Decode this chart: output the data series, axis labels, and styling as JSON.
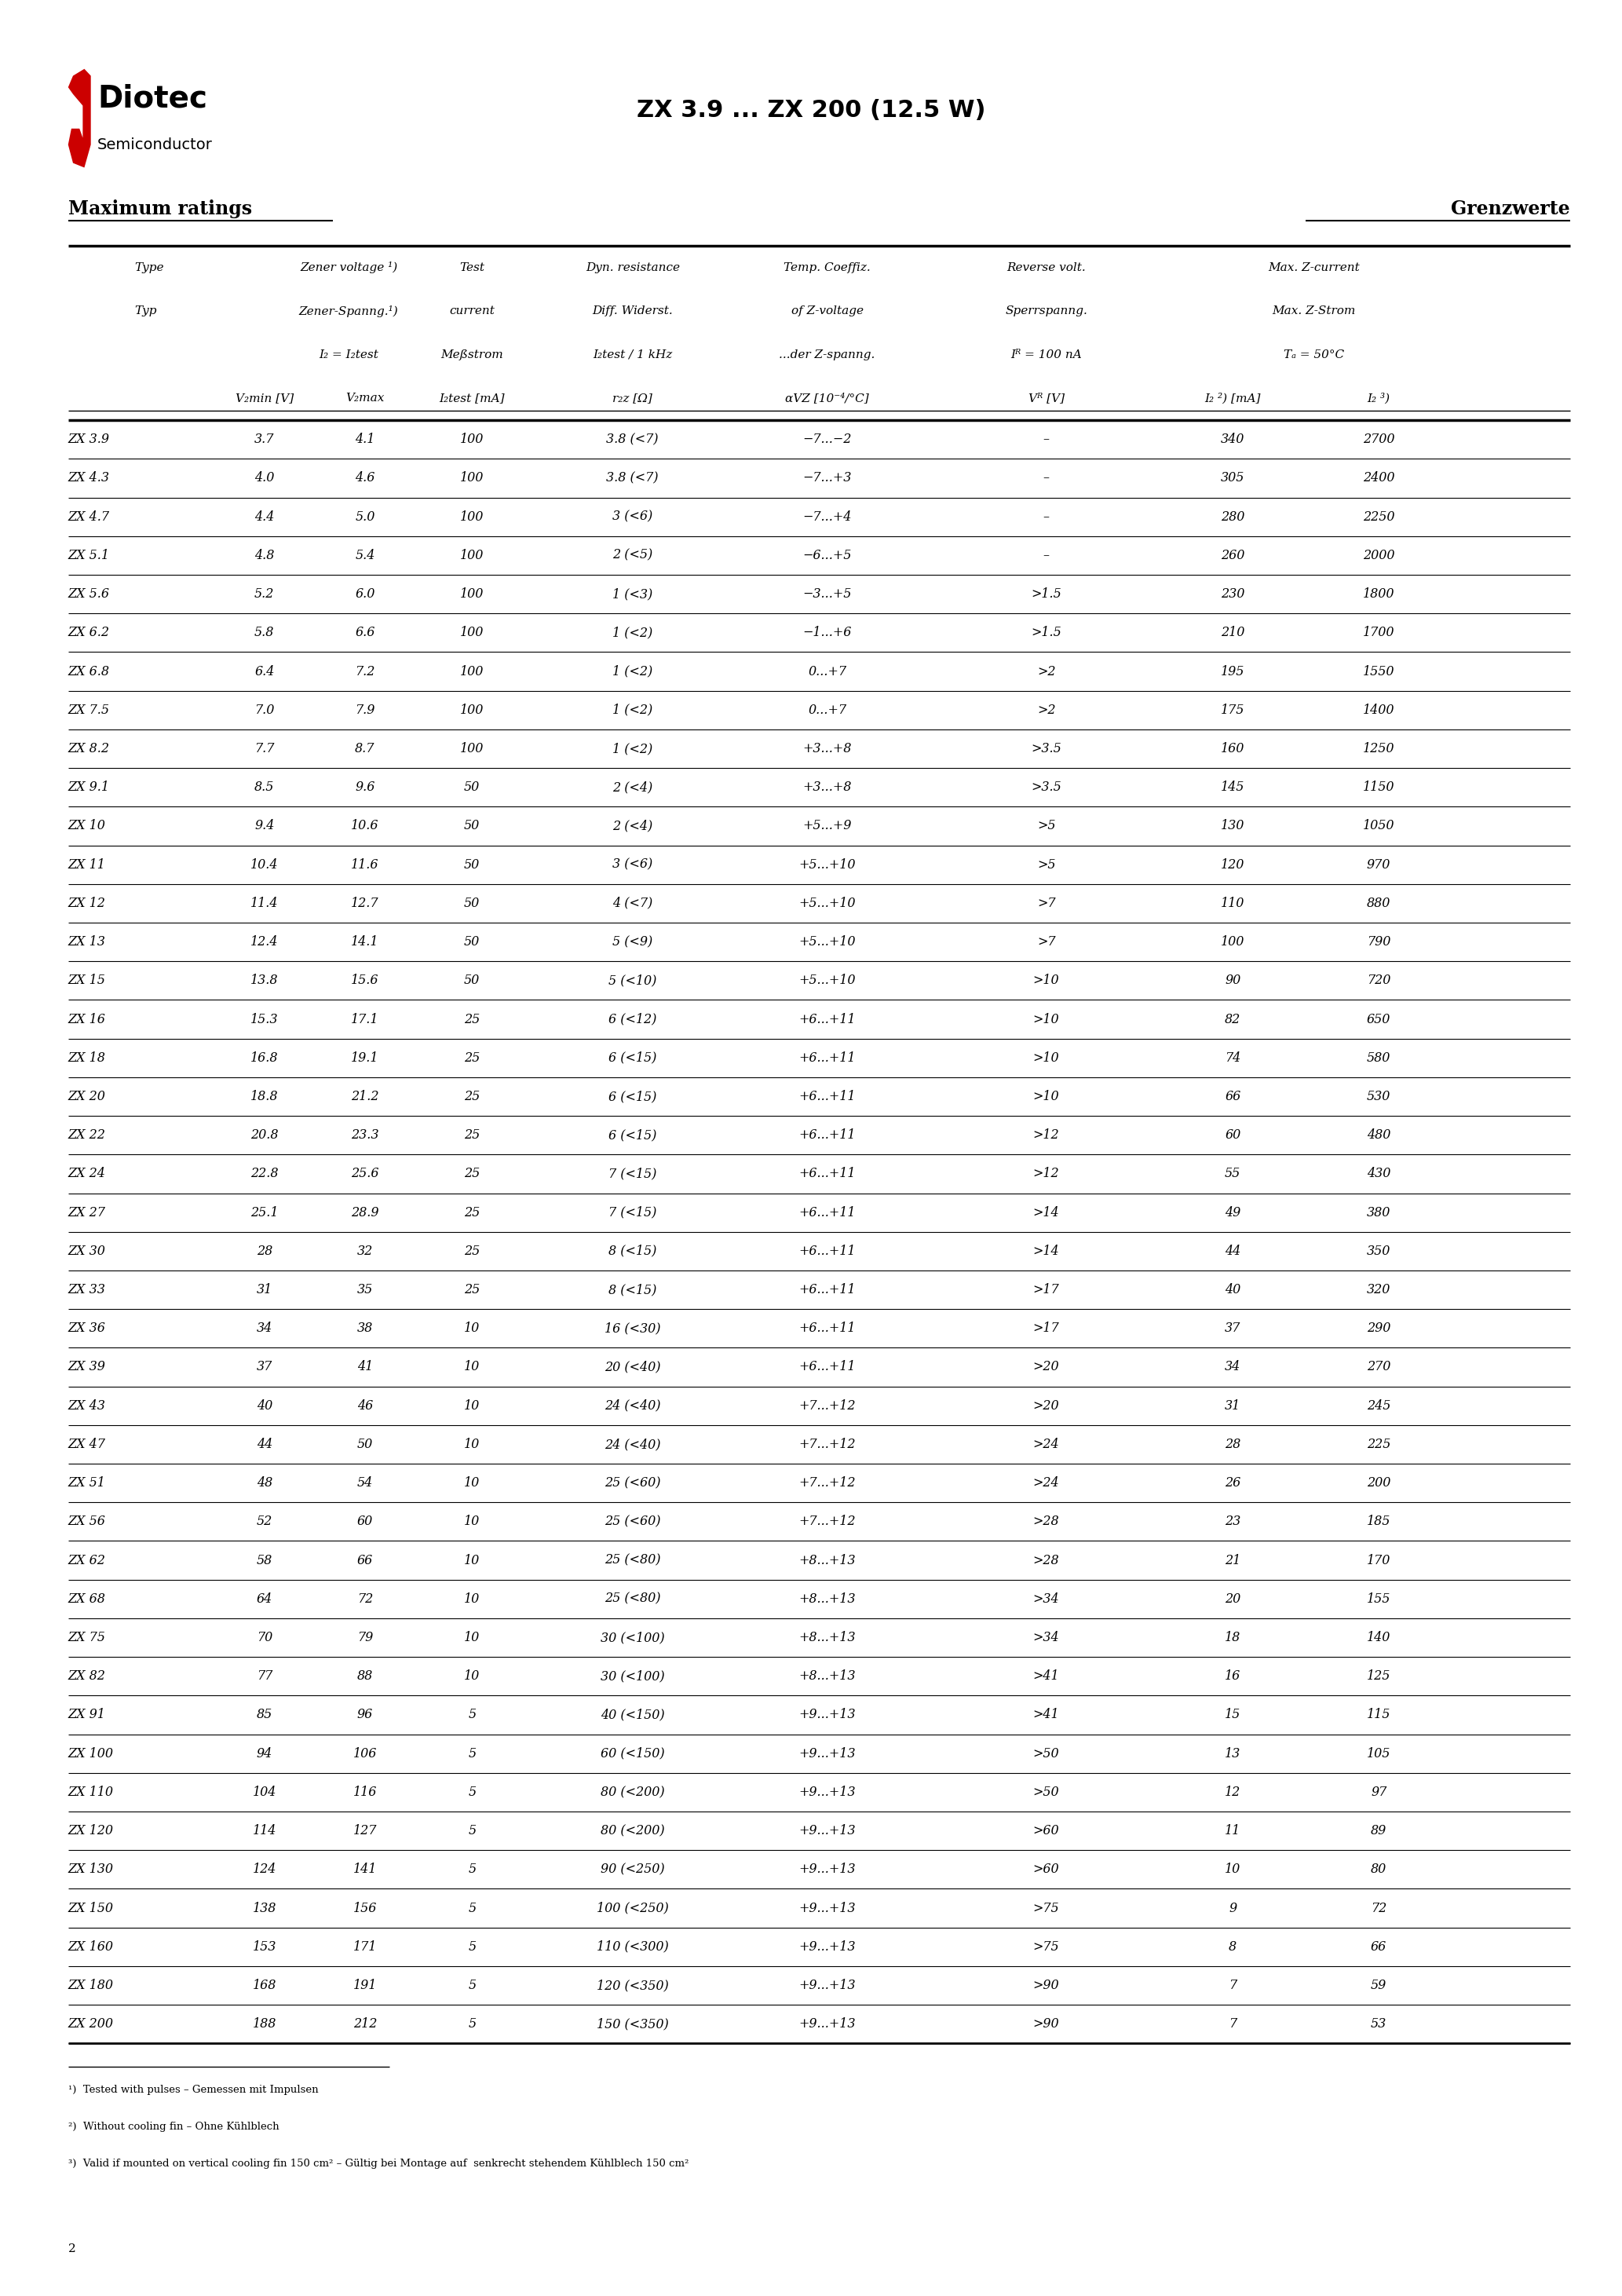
{
  "title": "ZX 3.9 ... ZX 200 (12.5 W)",
  "heading_left": "Maximum ratings",
  "heading_right": "Grenzwerte",
  "rows": [
    [
      "ZX 3.9",
      "3.7",
      "4.1",
      "100",
      "3.8 (<7)",
      "−7...−2",
      "–",
      "340",
      "2700"
    ],
    [
      "ZX 4.3",
      "4.0",
      "4.6",
      "100",
      "3.8 (<7)",
      "−7...+3",
      "–",
      "305",
      "2400"
    ],
    [
      "ZX 4.7",
      "4.4",
      "5.0",
      "100",
      "3 (<6)",
      "−7...+4",
      "–",
      "280",
      "2250"
    ],
    [
      "ZX 5.1",
      "4.8",
      "5.4",
      "100",
      "2 (<5)",
      "−6...+5",
      "–",
      "260",
      "2000"
    ],
    [
      "ZX 5.6",
      "5.2",
      "6.0",
      "100",
      "1 (<3)",
      "−3...+5",
      ">1.5",
      "230",
      "1800"
    ],
    [
      "ZX 6.2",
      "5.8",
      "6.6",
      "100",
      "1 (<2)",
      "−1...+6",
      ">1.5",
      "210",
      "1700"
    ],
    [
      "ZX 6.8",
      "6.4",
      "7.2",
      "100",
      "1 (<2)",
      "0...+7",
      ">2",
      "195",
      "1550"
    ],
    [
      "ZX 7.5",
      "7.0",
      "7.9",
      "100",
      "1 (<2)",
      "0...+7",
      ">2",
      "175",
      "1400"
    ],
    [
      "ZX 8.2",
      "7.7",
      "8.7",
      "100",
      "1 (<2)",
      "+3...+8",
      ">3.5",
      "160",
      "1250"
    ],
    [
      "ZX 9.1",
      "8.5",
      "9.6",
      "50",
      "2 (<4)",
      "+3...+8",
      ">3.5",
      "145",
      "1150"
    ],
    [
      "ZX 10",
      "9.4",
      "10.6",
      "50",
      "2 (<4)",
      "+5...+9",
      ">5",
      "130",
      "1050"
    ],
    [
      "ZX 11",
      "10.4",
      "11.6",
      "50",
      "3 (<6)",
      "+5...+10",
      ">5",
      "120",
      "970"
    ],
    [
      "ZX 12",
      "11.4",
      "12.7",
      "50",
      "4 (<7)",
      "+5...+10",
      ">7",
      "110",
      "880"
    ],
    [
      "ZX 13",
      "12.4",
      "14.1",
      "50",
      "5 (<9)",
      "+5...+10",
      ">7",
      "100",
      "790"
    ],
    [
      "ZX 15",
      "13.8",
      "15.6",
      "50",
      "5 (<10)",
      "+5...+10",
      ">10",
      "90",
      "720"
    ],
    [
      "ZX 16",
      "15.3",
      "17.1",
      "25",
      "6 (<12)",
      "+6...+11",
      ">10",
      "82",
      "650"
    ],
    [
      "ZX 18",
      "16.8",
      "19.1",
      "25",
      "6 (<15)",
      "+6...+11",
      ">10",
      "74",
      "580"
    ],
    [
      "ZX 20",
      "18.8",
      "21.2",
      "25",
      "6 (<15)",
      "+6...+11",
      ">10",
      "66",
      "530"
    ],
    [
      "ZX 22",
      "20.8",
      "23.3",
      "25",
      "6 (<15)",
      "+6...+11",
      ">12",
      "60",
      "480"
    ],
    [
      "ZX 24",
      "22.8",
      "25.6",
      "25",
      "7 (<15)",
      "+6...+11",
      ">12",
      "55",
      "430"
    ],
    [
      "ZX 27",
      "25.1",
      "28.9",
      "25",
      "7 (<15)",
      "+6...+11",
      ">14",
      "49",
      "380"
    ],
    [
      "ZX 30",
      "28",
      "32",
      "25",
      "8 (<15)",
      "+6...+11",
      ">14",
      "44",
      "350"
    ],
    [
      "ZX 33",
      "31",
      "35",
      "25",
      "8 (<15)",
      "+6...+11",
      ">17",
      "40",
      "320"
    ],
    [
      "ZX 36",
      "34",
      "38",
      "10",
      "16 (<30)",
      "+6...+11",
      ">17",
      "37",
      "290"
    ],
    [
      "ZX 39",
      "37",
      "41",
      "10",
      "20 (<40)",
      "+6...+11",
      ">20",
      "34",
      "270"
    ],
    [
      "ZX 43",
      "40",
      "46",
      "10",
      "24 (<40)",
      "+7...+12",
      ">20",
      "31",
      "245"
    ],
    [
      "ZX 47",
      "44",
      "50",
      "10",
      "24 (<40)",
      "+7...+12",
      ">24",
      "28",
      "225"
    ],
    [
      "ZX 51",
      "48",
      "54",
      "10",
      "25 (<60)",
      "+7...+12",
      ">24",
      "26",
      "200"
    ],
    [
      "ZX 56",
      "52",
      "60",
      "10",
      "25 (<60)",
      "+7...+12",
      ">28",
      "23",
      "185"
    ],
    [
      "ZX 62",
      "58",
      "66",
      "10",
      "25 (<80)",
      "+8...+13",
      ">28",
      "21",
      "170"
    ],
    [
      "ZX 68",
      "64",
      "72",
      "10",
      "25 (<80)",
      "+8...+13",
      ">34",
      "20",
      "155"
    ],
    [
      "ZX 75",
      "70",
      "79",
      "10",
      "30 (<100)",
      "+8...+13",
      ">34",
      "18",
      "140"
    ],
    [
      "ZX 82",
      "77",
      "88",
      "10",
      "30 (<100)",
      "+8...+13",
      ">41",
      "16",
      "125"
    ],
    [
      "ZX 91",
      "85",
      "96",
      "5",
      "40 (<150)",
      "+9...+13",
      ">41",
      "15",
      "115"
    ],
    [
      "ZX 100",
      "94",
      "106",
      "5",
      "60 (<150)",
      "+9...+13",
      ">50",
      "13",
      "105"
    ],
    [
      "ZX 110",
      "104",
      "116",
      "5",
      "80 (<200)",
      "+9...+13",
      ">50",
      "12",
      "97"
    ],
    [
      "ZX 120",
      "114",
      "127",
      "5",
      "80 (<200)",
      "+9...+13",
      ">60",
      "11",
      "89"
    ],
    [
      "ZX 130",
      "124",
      "141",
      "5",
      "90 (<250)",
      "+9...+13",
      ">60",
      "10",
      "80"
    ],
    [
      "ZX 150",
      "138",
      "156",
      "5",
      "100 (<250)",
      "+9...+13",
      ">75",
      "9",
      "72"
    ],
    [
      "ZX 160",
      "153",
      "171",
      "5",
      "110 (<300)",
      "+9...+13",
      ">75",
      "8",
      "66"
    ],
    [
      "ZX 180",
      "168",
      "191",
      "5",
      "120 (<350)",
      "+9...+13",
      ">90",
      "7",
      "59"
    ],
    [
      "ZX 200",
      "188",
      "212",
      "5",
      "150 (<350)",
      "+9...+13",
      ">90",
      "7",
      "53"
    ]
  ],
  "footnotes": [
    "¹)  Tested with pulses – Gemessen mit Impulsen",
    "²)  Without cooling fin – Ohne Kühlblech",
    "³)  Valid if mounted on vertical cooling fin 150 cm² – Gültig bei Montage auf  senkrecht stehendem Kühlblech 150 cm²"
  ],
  "page_number": "2"
}
